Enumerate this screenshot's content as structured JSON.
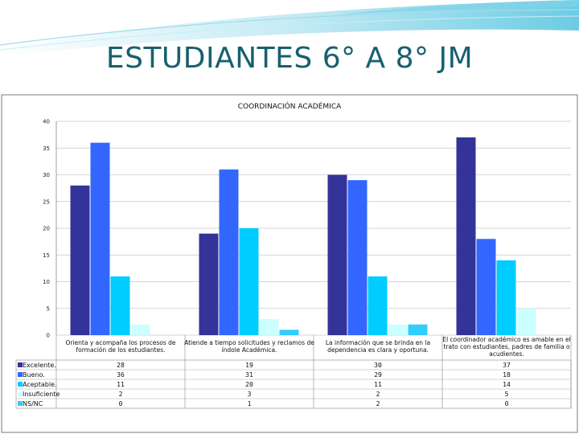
{
  "slide": {
    "title": "ESTUDIANTES 6° A 8° JM"
  },
  "colors": {
    "title": "#17606e",
    "series": [
      "#333399",
      "#3366ff",
      "#00ccff",
      "#ccffff",
      "#33ccff"
    ]
  },
  "chart_data": {
    "type": "bar",
    "title": "COORDINACIÓN ACADÉMICA",
    "categories": [
      [
        "Orienta y acompaña los procesos de",
        "formación de los estudiantes."
      ],
      [
        "Atiende a tiempo solicitudes y reclamos de",
        "índole Académica."
      ],
      [
        "La información que se brinda en la",
        "dependencia es clara y oportuna."
      ],
      [
        "El coordinador académico es amable en el",
        "trato con estudiantes, padres de familia o",
        "acudientes."
      ]
    ],
    "series": [
      {
        "name": "Excelente.",
        "values": [
          28,
          19,
          30,
          37
        ]
      },
      {
        "name": "Bueno.",
        "values": [
          36,
          31,
          29,
          18
        ]
      },
      {
        "name": "Aceptable.",
        "values": [
          11,
          20,
          11,
          14
        ]
      },
      {
        "name": "Insuficiente",
        "values": [
          2,
          3,
          2,
          5
        ]
      },
      {
        "name": "NS/NC",
        "values": [
          0,
          1,
          2,
          0
        ]
      }
    ],
    "yticks": [
      0,
      5,
      10,
      15,
      20,
      25,
      30,
      35,
      40
    ],
    "ylim": [
      0,
      40
    ],
    "grid": true,
    "legend": "data-table"
  }
}
